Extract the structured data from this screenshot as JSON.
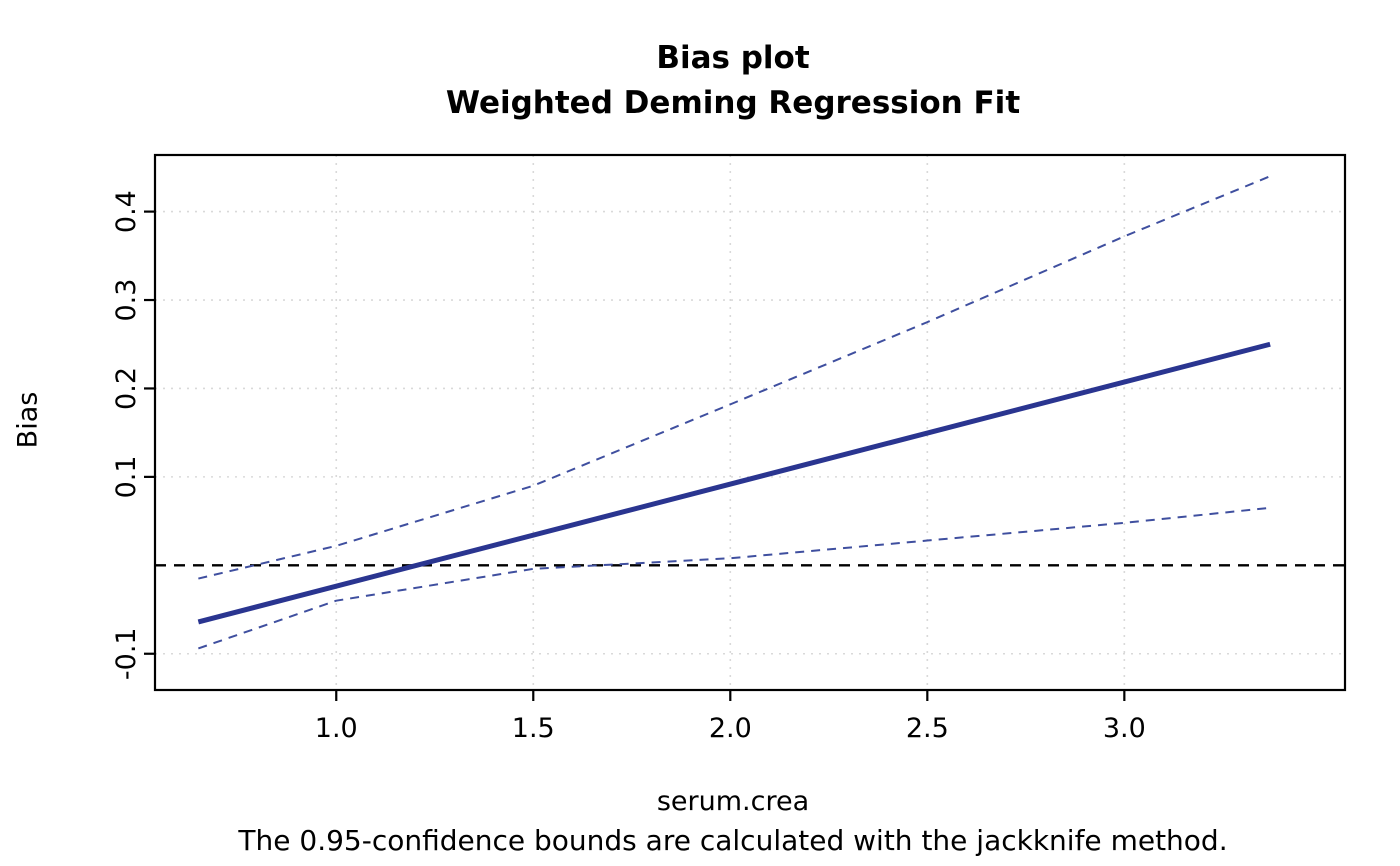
{
  "chart_data": {
    "type": "line",
    "title": "Bias plot",
    "subtitle": "Weighted Deming Regression Fit",
    "xlabel": "serum.crea",
    "ylabel": "Bias",
    "caption": "The 0.95-confidence bounds are calculated with the jackknife method.",
    "confidence_level": "0.95",
    "method": "jackknife",
    "xlim": [
      0.54,
      3.56
    ],
    "ylim": [
      -0.141,
      0.464
    ],
    "xticks": [
      1.0,
      1.5,
      2.0,
      2.5,
      3.0
    ],
    "xtick_labels": [
      "1.0",
      "1.5",
      "2.0",
      "2.5",
      "3.0"
    ],
    "yticks": [
      -0.1,
      0.1,
      0.2,
      0.3,
      0.4
    ],
    "ytick_labels": [
      "-0.1",
      "0.1",
      "0.2",
      "0.3",
      "0.4"
    ],
    "grid": true,
    "legend": "none",
    "colors": {
      "estimate_line": "#2a3590",
      "confidence_bounds": "#3f4f9f",
      "grid_line": "#d9d9d9",
      "zero_line": "#000000",
      "box": "#000000"
    },
    "zero_line_y": 0,
    "series": [
      {
        "name": "bias-estimate",
        "style": "solid",
        "width": 5,
        "color": "#2a3590",
        "x": [
          0.65,
          3.37
        ],
        "y": [
          -0.064,
          0.25
        ]
      },
      {
        "name": "upper-confidence-bound",
        "style": "dashed",
        "width": 2,
        "color": "#3f4f9f",
        "x": [
          0.65,
          1.0,
          1.5,
          2.0,
          2.5,
          3.0,
          3.37
        ],
        "y": [
          -0.015,
          0.022,
          0.09,
          0.182,
          0.275,
          0.372,
          0.44
        ]
      },
      {
        "name": "lower-confidence-bound",
        "style": "dashed",
        "width": 2,
        "color": "#3f4f9f",
        "x": [
          0.65,
          1.0,
          1.5,
          2.0,
          2.5,
          3.0,
          3.37
        ],
        "y": [
          -0.094,
          -0.04,
          -0.004,
          0.008,
          0.028,
          0.048,
          0.065
        ]
      }
    ]
  }
}
